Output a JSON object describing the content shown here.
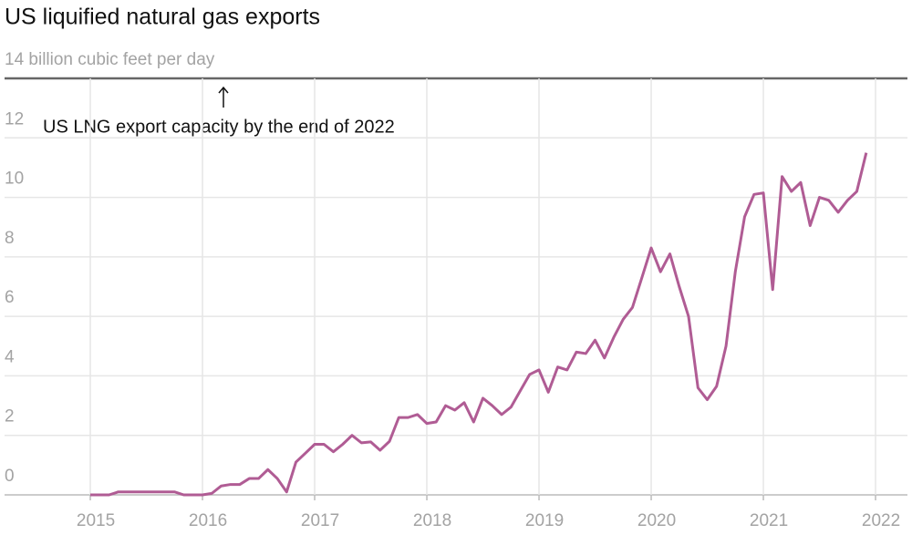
{
  "chart_data": {
    "type": "line",
    "title": "US liquified natural gas exports",
    "annotation": "US LNG export capacity by the end of 2022",
    "x": [
      2015,
      2015.083,
      2015.167,
      2015.25,
      2015.333,
      2015.417,
      2015.5,
      2015.583,
      2015.667,
      2015.75,
      2015.833,
      2015.917,
      2016,
      2016.083,
      2016.167,
      2016.25,
      2016.333,
      2016.417,
      2016.5,
      2016.583,
      2016.667,
      2016.75,
      2016.833,
      2016.917,
      2017,
      2017.083,
      2017.167,
      2017.25,
      2017.333,
      2017.417,
      2017.5,
      2017.583,
      2017.667,
      2017.75,
      2017.833,
      2017.917,
      2018,
      2018.083,
      2018.167,
      2018.25,
      2018.333,
      2018.417,
      2018.5,
      2018.583,
      2018.667,
      2018.75,
      2018.833,
      2018.917,
      2019,
      2019.083,
      2019.167,
      2019.25,
      2019.333,
      2019.417,
      2019.5,
      2019.583,
      2019.667,
      2019.75,
      2019.833,
      2019.917,
      2020,
      2020.083,
      2020.167,
      2020.25,
      2020.333,
      2020.417,
      2020.5,
      2020.583,
      2020.667,
      2020.75,
      2020.833,
      2020.917,
      2021,
      2021.083,
      2021.167,
      2021.25,
      2021.333,
      2021.417,
      2021.5,
      2021.583,
      2021.667,
      2021.75,
      2021.833,
      2021.917
    ],
    "series": [
      {
        "name": "US LNG exports",
        "color": "#b05c94",
        "values": [
          0,
          0,
          0,
          0.1,
          0.1,
          0.1,
          0.1,
          0.1,
          0.1,
          0.1,
          0,
          0,
          0,
          0.05,
          0.3,
          0.35,
          0.35,
          0.55,
          0.55,
          0.85,
          0.55,
          0.1,
          1.1,
          1.4,
          1.7,
          1.7,
          1.45,
          1.7,
          2.0,
          1.75,
          1.78,
          1.5,
          1.8,
          2.6,
          2.6,
          2.7,
          2.4,
          2.45,
          3.0,
          2.85,
          3.1,
          2.45,
          3.25,
          3.0,
          2.7,
          2.95,
          3.5,
          4.05,
          4.2,
          3.45,
          4.3,
          4.2,
          4.8,
          4.75,
          5.2,
          4.6,
          5.3,
          5.9,
          6.3,
          7.3,
          8.3,
          7.5,
          8.1,
          7.0,
          6.0,
          3.6,
          3.2,
          3.65,
          5.0,
          7.5,
          9.35,
          10.1,
          10.15,
          6.9,
          10.7,
          10.2,
          10.5,
          9.05,
          10.0,
          9.9,
          9.5,
          9.9,
          10.2,
          11.5
        ]
      }
    ],
    "xlim": [
      2014.195,
      2022.325
    ],
    "xticks": [
      2015,
      2016,
      2017,
      2018,
      2019,
      2020,
      2021,
      2022
    ],
    "ylim": [
      0,
      14
    ],
    "yticks": [
      0,
      2,
      4,
      6,
      8,
      10,
      12,
      {
        "value": 14,
        "label": "14 billion cubic feet per day"
      }
    ],
    "grid": true
  }
}
